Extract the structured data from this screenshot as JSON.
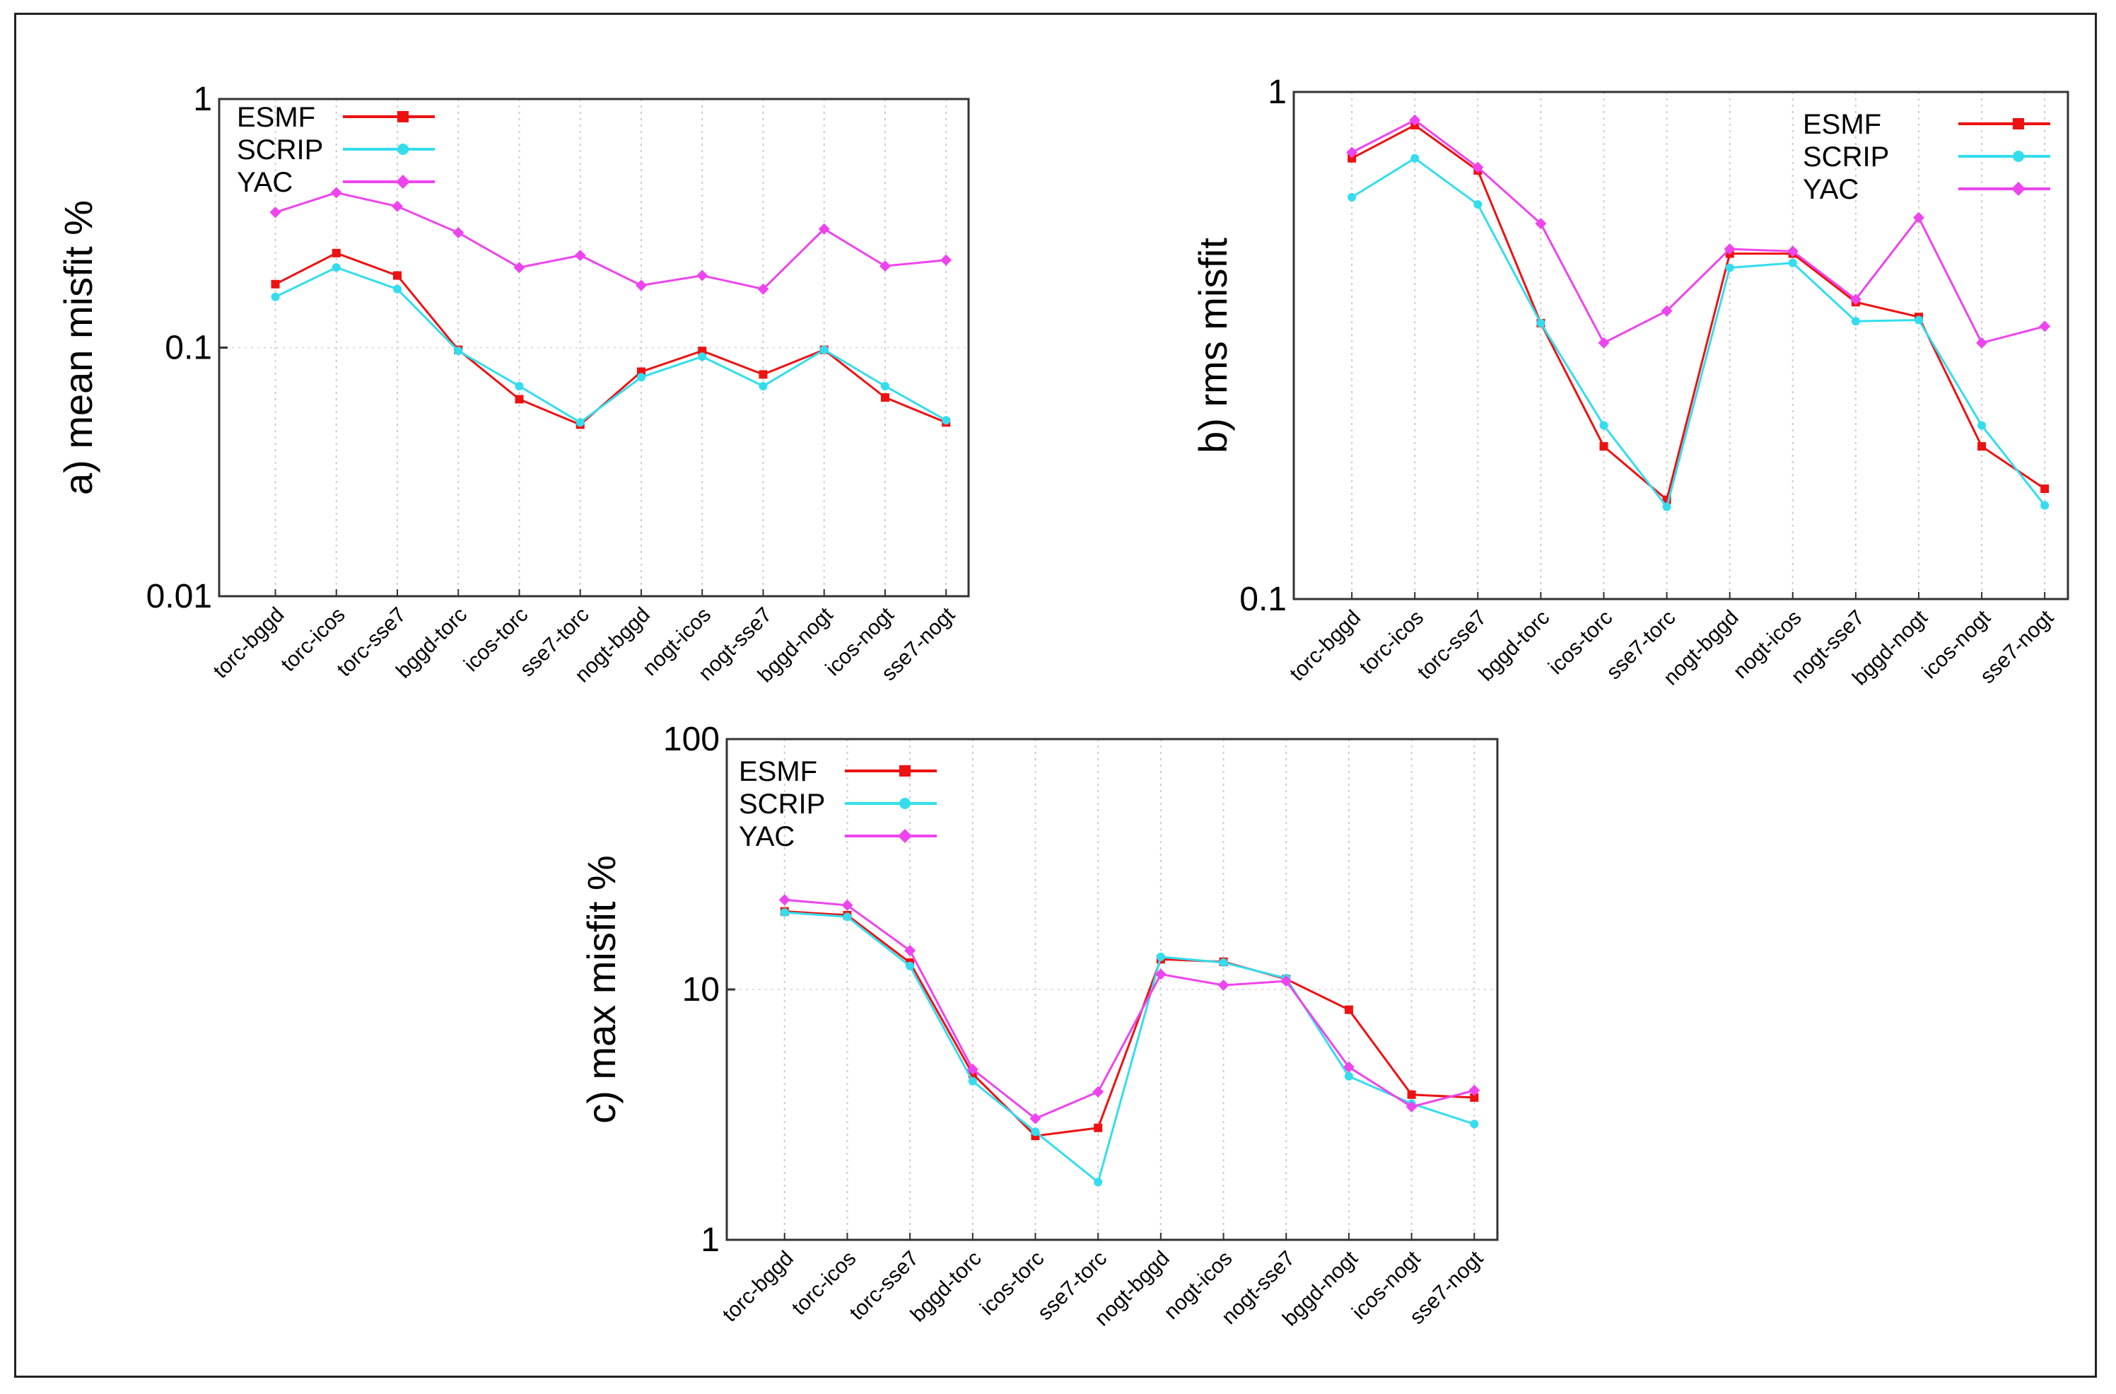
{
  "colors": {
    "ESMF": "#ee1111",
    "SCRIP": "#33ddee",
    "YAC": "#ee44ee"
  },
  "chart_data": [
    {
      "type": "line",
      "title": "",
      "ylabel": "a) mean misfit %",
      "yscale": "log",
      "ylim": [
        0.01,
        1
      ],
      "yticks": [
        "0.01",
        "0.1",
        "1"
      ],
      "grid": true,
      "legend_position": "top-left",
      "categories": [
        "torc-bggd",
        "torc-icos",
        "torc-sse7",
        "bggd-torc",
        "icos-torc",
        "sse7-torc",
        "nogt-bggd",
        "nogt-icos",
        "nogt-sse7",
        "bggd-nogt",
        "icos-nogt",
        "sse7-nogt"
      ],
      "series": [
        {
          "name": "ESMF",
          "marker": "square",
          "values": [
            0.18,
            0.24,
            0.195,
            0.098,
            0.062,
            0.049,
            0.08,
            0.097,
            0.078,
            0.098,
            0.063,
            0.05
          ]
        },
        {
          "name": "SCRIP",
          "marker": "circle",
          "values": [
            0.16,
            0.21,
            0.172,
            0.097,
            0.07,
            0.05,
            0.076,
            0.092,
            0.07,
            0.098,
            0.07,
            0.051
          ]
        },
        {
          "name": "YAC",
          "marker": "diamond",
          "values": [
            0.35,
            0.42,
            0.37,
            0.29,
            0.21,
            0.235,
            0.178,
            0.195,
            0.172,
            0.3,
            0.213,
            0.225
          ]
        }
      ]
    },
    {
      "type": "line",
      "title": "",
      "ylabel": "b) rms misfit",
      "yscale": "log",
      "ylim": [
        0.1,
        1
      ],
      "yticks": [
        "0.1",
        "1"
      ],
      "grid": true,
      "legend_position": "top-right",
      "categories": [
        "torc-bggd",
        "torc-icos",
        "torc-sse7",
        "bggd-torc",
        "icos-torc",
        "sse7-torc",
        "nogt-bggd",
        "nogt-icos",
        "nogt-sse7",
        "bggd-nogt",
        "icos-nogt",
        "sse7-nogt"
      ],
      "series": [
        {
          "name": "ESMF",
          "marker": "square",
          "values": [
            0.74,
            0.86,
            0.7,
            0.35,
            0.2,
            0.157,
            0.48,
            0.48,
            0.385,
            0.36,
            0.2,
            0.165
          ]
        },
        {
          "name": "SCRIP",
          "marker": "circle",
          "values": [
            0.62,
            0.74,
            0.6,
            0.35,
            0.22,
            0.152,
            0.45,
            0.46,
            0.353,
            0.355,
            0.22,
            0.153
          ]
        },
        {
          "name": "YAC",
          "marker": "diamond",
          "values": [
            0.76,
            0.88,
            0.71,
            0.55,
            0.32,
            0.37,
            0.49,
            0.485,
            0.39,
            0.565,
            0.32,
            0.345
          ]
        }
      ]
    },
    {
      "type": "line",
      "title": "",
      "ylabel": "c) max misfit %",
      "yscale": "log",
      "ylim": [
        1,
        100
      ],
      "yticks": [
        "1",
        "10",
        "100"
      ],
      "grid": true,
      "legend_position": "top-left",
      "categories": [
        "torc-bggd",
        "torc-icos",
        "torc-sse7",
        "bggd-torc",
        "icos-torc",
        "sse7-torc",
        "nogt-bggd",
        "nogt-icos",
        "nogt-sse7",
        "bggd-nogt",
        "icos-nogt",
        "sse7-nogt"
      ],
      "series": [
        {
          "name": "ESMF",
          "marker": "square",
          "values": [
            20.5,
            19.8,
            12.8,
            4.6,
            2.6,
            2.8,
            13.2,
            12.9,
            11.0,
            8.3,
            3.8,
            3.7
          ]
        },
        {
          "name": "SCRIP",
          "marker": "circle",
          "values": [
            20.3,
            19.5,
            12.4,
            4.3,
            2.7,
            1.7,
            13.5,
            12.8,
            11.1,
            4.5,
            3.5,
            2.9
          ]
        },
        {
          "name": "YAC",
          "marker": "diamond",
          "values": [
            22.8,
            21.7,
            14.3,
            4.8,
            3.05,
            3.9,
            11.5,
            10.4,
            10.8,
            4.9,
            3.4,
            3.95
          ]
        }
      ]
    }
  ]
}
